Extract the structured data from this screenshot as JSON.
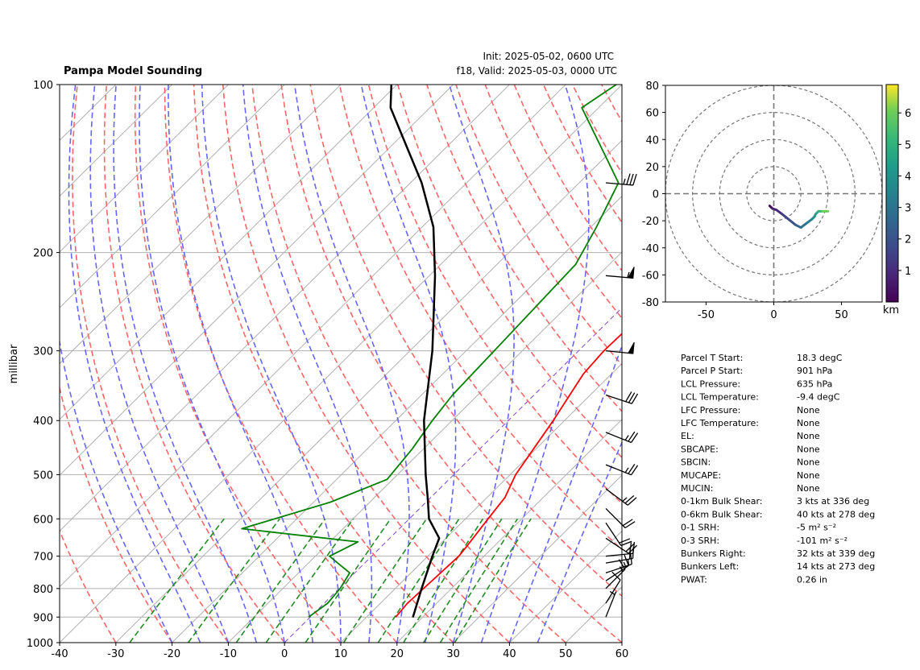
{
  "chart_data": [
    {
      "type": "line",
      "name": "skewt",
      "title": "Pampa Model Sounding",
      "title_right": [
        "Init: 2025-05-02, 0600 UTC",
        "f18, Valid: 2025-05-03, 0000 UTC"
      ],
      "ylabel": "millibar",
      "xlabel": "",
      "xlim": [
        -40,
        60
      ],
      "ylim": [
        1000,
        100
      ],
      "y_scale": "log",
      "skew": "skew-T log-p",
      "grid": true,
      "x_ticks": [
        "-40",
        "-30",
        "-20",
        "-10",
        "0",
        "10",
        "20",
        "30",
        "40",
        "50",
        "60"
      ],
      "x_tick_values": [
        -40,
        -30,
        -20,
        -10,
        0,
        10,
        20,
        30,
        40,
        50,
        60
      ],
      "y_ticks": [
        "100",
        "200",
        "300",
        "400",
        "500",
        "600",
        "700",
        "800",
        "900",
        "1000"
      ],
      "y_tick_values": [
        100,
        200,
        300,
        400,
        500,
        600,
        700,
        800,
        900,
        1000
      ],
      "colors": {
        "temperature": "#ff0000",
        "dewpoint": "#008000",
        "parcel": "#000000",
        "dry_adiabat": "#ff6666",
        "moist_adiabat": "#6666ff",
        "mixing_ratio": "#228b22",
        "isotherm": "#b0b0b0",
        "isotherm_zero": "#8844cc"
      },
      "series": [
        {
          "name": "temperature",
          "points": [
            [
              15.2,
              900
            ],
            [
              14.8,
              850
            ],
            [
              15.5,
              700
            ],
            [
              15.2,
              675
            ],
            [
              14.0,
              600
            ],
            [
              13.2,
              550
            ],
            [
              11.0,
              500
            ],
            [
              8.0,
              400
            ],
            [
              5.0,
              330
            ],
            [
              4.5,
              300
            ],
            [
              4.8,
              260
            ],
            [
              5.3,
              220
            ],
            [
              5.2,
              200
            ],
            [
              4.5,
              180
            ],
            [
              4.2,
              150
            ],
            [
              8.0,
              100
            ]
          ]
        },
        {
          "name": "dewpoint",
          "points": [
            [
              -0.3,
              900
            ],
            [
              0.6,
              850
            ],
            [
              0.2,
              800
            ],
            [
              -0.9,
              750
            ],
            [
              -7.5,
              700
            ],
            [
              -5.0,
              660
            ],
            [
              -28.0,
              625
            ],
            [
              -17.0,
              560
            ],
            [
              -11.0,
              510
            ],
            [
              -12.0,
              450
            ],
            [
              -13.5,
              400
            ],
            [
              -14.5,
              360
            ],
            [
              -15.0,
              300
            ],
            [
              -15.5,
              250
            ],
            [
              -16.0,
              210
            ],
            [
              -19.0,
              180
            ],
            [
              -23.0,
              150
            ],
            [
              -43.0,
              110
            ],
            [
              -41.0,
              100
            ]
          ]
        },
        {
          "name": "parcel",
          "points": [
            [
              18.3,
              901
            ],
            [
              14.7,
              800
            ],
            [
              10.8,
              700
            ],
            [
              8.8,
              650
            ],
            [
              3.5,
              600
            ],
            [
              -0.5,
              550
            ],
            [
              -5.0,
              500
            ],
            [
              -15.0,
              400
            ],
            [
              -26.0,
              300
            ],
            [
              -39.0,
              220
            ],
            [
              -48.0,
              180
            ],
            [
              -58.0,
              150
            ],
            [
              -77.0,
              110
            ],
            [
              -81.0,
              100
            ]
          ]
        }
      ],
      "wind_barbs": [
        {
          "p": 900,
          "u": -2,
          "v": -5
        },
        {
          "p": 850,
          "u": -5,
          "v": -8
        },
        {
          "p": 800,
          "u": -10,
          "v": -10
        },
        {
          "p": 775,
          "u": -12,
          "v": -8
        },
        {
          "p": 750,
          "u": -15,
          "v": -5
        },
        {
          "p": 720,
          "u": -18,
          "v": -3
        },
        {
          "p": 700,
          "u": -20,
          "v": -2
        },
        {
          "p": 650,
          "u": -15,
          "v": 10
        },
        {
          "p": 610,
          "u": -10,
          "v": 15
        },
        {
          "p": 575,
          "u": -15,
          "v": 15
        },
        {
          "p": 530,
          "u": -20,
          "v": 15
        },
        {
          "p": 480,
          "u": -25,
          "v": 10
        },
        {
          "p": 420,
          "u": -25,
          "v": 10
        },
        {
          "p": 360,
          "u": -30,
          "v": 10
        },
        {
          "p": 300,
          "u": -50,
          "v": 5
        },
        {
          "p": 220,
          "u": -55,
          "v": 5
        },
        {
          "p": 150,
          "u": -35,
          "v": 3
        }
      ]
    },
    {
      "type": "line",
      "name": "hodograph",
      "xlim": [
        -80,
        80
      ],
      "ylim": [
        -80,
        80
      ],
      "x_ticks": [
        "-50",
        "0",
        "50"
      ],
      "x_tick_values": [
        -50,
        0,
        50
      ],
      "y_ticks": [
        "80",
        "60",
        "40",
        "20",
        "0",
        "-20",
        "-40",
        "-60",
        "-80"
      ],
      "y_tick_values": [
        80,
        60,
        40,
        20,
        0,
        -20,
        -40,
        -60,
        -80
      ],
      "range_rings": [
        20,
        40,
        60,
        80
      ],
      "colorbar_label": "km",
      "colorbar_ticks": [
        "1",
        "2",
        "3",
        "4",
        "5",
        "6"
      ],
      "colorbar_tick_values": [
        1,
        2,
        3,
        4,
        5,
        6
      ],
      "colorbar_range": [
        0,
        6.9
      ],
      "points": [
        [
          -3,
          -9,
          0.0
        ],
        [
          -1,
          -11,
          0.5
        ],
        [
          2,
          -12,
          0.8
        ],
        [
          6,
          -15,
          1.2
        ],
        [
          11,
          -19,
          1.7
        ],
        [
          16,
          -23,
          2.2
        ],
        [
          20,
          -25,
          2.7
        ],
        [
          24,
          -22,
          3.1
        ],
        [
          28,
          -19,
          3.5
        ],
        [
          30,
          -17,
          3.9
        ],
        [
          31,
          -15,
          4.3
        ],
        [
          33,
          -13,
          4.8
        ],
        [
          36,
          -13,
          5.5
        ],
        [
          40,
          -13,
          6.5
        ]
      ]
    }
  ],
  "stats": [
    {
      "label": "Parcel T Start:",
      "value": "18.3 degC"
    },
    {
      "label": "Parcel P Start:",
      "value": "901 hPa"
    },
    {
      "label": "LCL Pressure:",
      "value": "635 hPa"
    },
    {
      "label": "LCL Temperature:",
      "value": "-9.4 degC"
    },
    {
      "label": "LFC Pressure:",
      "value": "None"
    },
    {
      "label": "LFC Temperature:",
      "value": "None"
    },
    {
      "label": "EL:",
      "value": "None"
    },
    {
      "label": "SBCAPE:",
      "value": "None"
    },
    {
      "label": "SBCIN:",
      "value": "None"
    },
    {
      "label": "MUCAPE:",
      "value": "None"
    },
    {
      "label": "MUCIN:",
      "value": "None"
    },
    {
      "label": "0-1km Bulk Shear:",
      "value": "3 kts at 336 deg"
    },
    {
      "label": "0-6km Bulk Shear:",
      "value": "40 kts at 278 deg"
    },
    {
      "label": "0-1 SRH:",
      "value": "-5 m² s⁻²"
    },
    {
      "label": "0-3 SRH:",
      "value": "-101 m² s⁻²"
    },
    {
      "label": "Bunkers Right:",
      "value": "32 kts at 339 deg"
    },
    {
      "label": "Bunkers Left:",
      "value": "14 kts at 273 deg"
    },
    {
      "label": "PWAT:",
      "value": "0.26 in"
    }
  ]
}
